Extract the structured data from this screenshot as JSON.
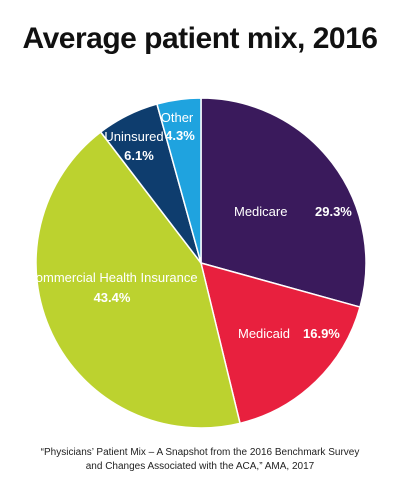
{
  "chart_data": {
    "type": "pie",
    "title": "Average patient mix, 2016",
    "slices": [
      {
        "label": "Medicare",
        "value_label": "29.3%",
        "value": 29.3,
        "color": "#3a1a5c"
      },
      {
        "label": "Medicaid",
        "value_label": "16.9%",
        "value": 16.9,
        "color": "#e8203e"
      },
      {
        "label": "Commercial Health Insurance",
        "value_label": "43.4%",
        "value": 43.4,
        "color": "#bcd22f"
      },
      {
        "label": "Uninsured",
        "value_label": "6.1%",
        "value": 6.1,
        "color": "#0e3d6e"
      },
      {
        "label": "Other",
        "value_label": "4.3%",
        "value": 4.3,
        "color": "#1fa3df"
      }
    ]
  },
  "source": {
    "line1": "“Physicians’ Patient Mix – A Snapshot from the 2016 Benchmark Survey",
    "line2": "and Changes Associated with the ACA,” AMA, 2017"
  }
}
